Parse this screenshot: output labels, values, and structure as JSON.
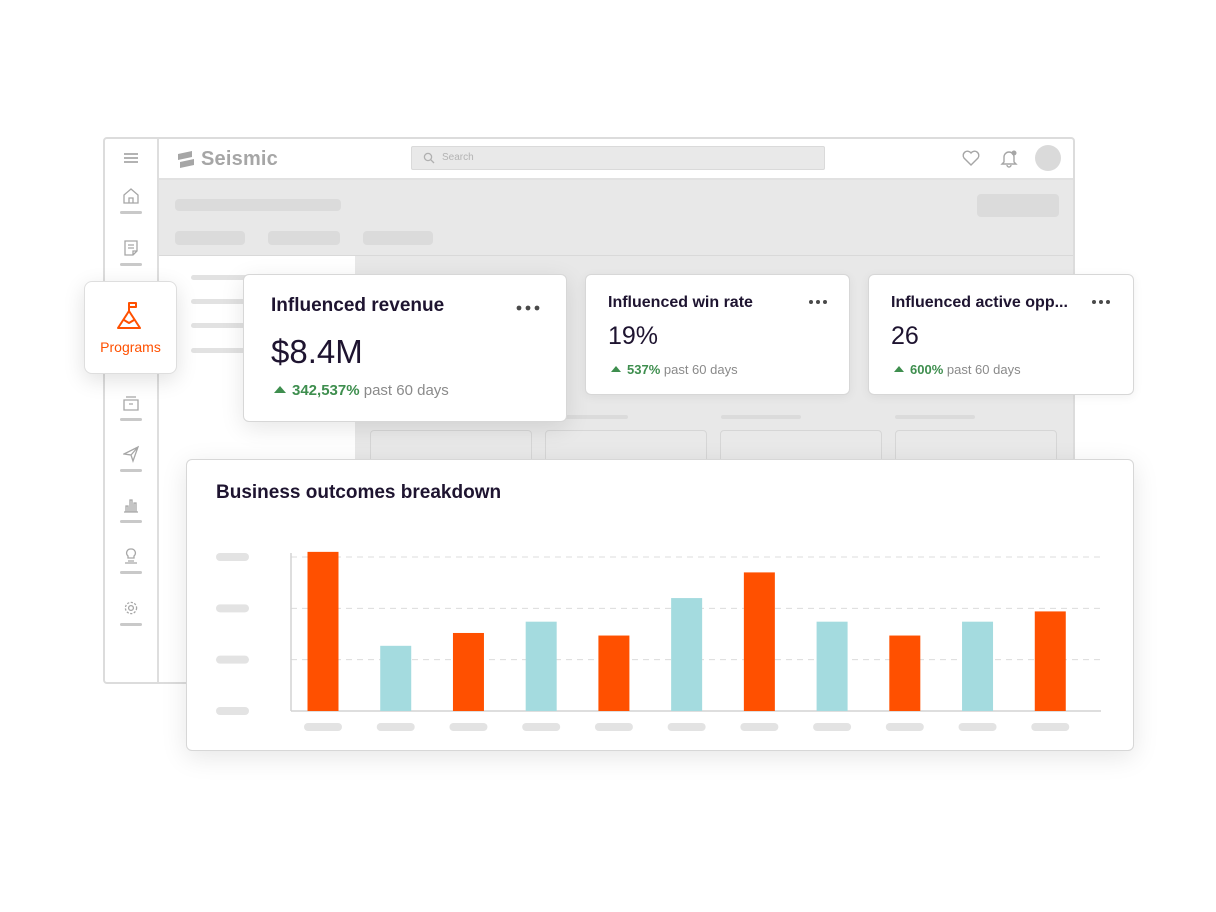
{
  "app": {
    "brand": "Seismic",
    "search_placeholder": "Search"
  },
  "nav": {
    "active_item_label": "Programs"
  },
  "metrics": [
    {
      "title": "Influenced revenue",
      "value": "$8.4M",
      "change": "342,537%",
      "period": "past 60 days"
    },
    {
      "title": "Influenced win rate",
      "value": "19%",
      "change": "537%",
      "period": "past 60 days"
    },
    {
      "title": "Influenced active opp...",
      "value": "26",
      "change": "600%",
      "period": "past 60 days"
    }
  ],
  "colors": {
    "accent": "#ff5000",
    "secondary": "#a4dbdf",
    "positive": "#3e8e4e",
    "text": "#1e1430"
  },
  "chart_data": {
    "type": "bar",
    "title": "Business outcomes breakdown",
    "xlabel": "",
    "ylabel": "",
    "ylim": [
      0,
      3
    ],
    "grid": true,
    "categories": [
      "",
      "",
      "",
      "",
      "",
      "",
      "",
      "",
      "",
      "",
      ""
    ],
    "values": [
      3.1,
      1.27,
      1.52,
      1.74,
      1.47,
      2.2,
      2.7,
      1.74,
      1.47,
      1.74,
      1.94
    ],
    "bar_colors": [
      "#ff5000",
      "#a4dbdf",
      "#ff5000",
      "#a4dbdf",
      "#ff5000",
      "#a4dbdf",
      "#ff5000",
      "#a4dbdf",
      "#ff5000",
      "#a4dbdf",
      "#ff5000"
    ]
  }
}
